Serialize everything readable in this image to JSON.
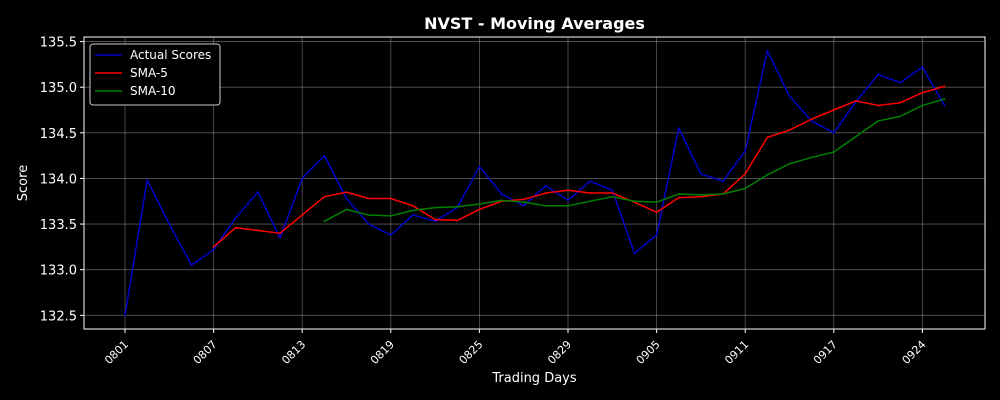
{
  "chart_data": {
    "type": "line",
    "title": "NVST - Moving Averages",
    "xlabel": "Trading Days",
    "ylabel": "Score",
    "ylim": [
      132.35,
      135.55
    ],
    "yticks": [
      "132.5",
      "133.0",
      "133.5",
      "134.0",
      "134.5",
      "135.0",
      "135.5"
    ],
    "xtick_labels": [
      "0801",
      "0807",
      "0813",
      "0819",
      "0825",
      "0829",
      "0905",
      "0911",
      "0917",
      "0924"
    ],
    "xtick_index": [
      0,
      4,
      8,
      12,
      16,
      20,
      24,
      28,
      32,
      36
    ],
    "grid": true,
    "legend_position": "top-left",
    "background": "#000000",
    "series": [
      {
        "name": "Actual Scores",
        "color": "#0000cc",
        "start_index": 0,
        "values": [
          132.5,
          133.98,
          133.5,
          133.05,
          133.22,
          133.57,
          133.85,
          133.35,
          134.0,
          134.25,
          133.78,
          133.5,
          133.38,
          133.6,
          133.53,
          133.68,
          134.13,
          133.83,
          133.7,
          133.92,
          133.76,
          133.97,
          133.87,
          133.18,
          133.38,
          134.55,
          134.05,
          133.97,
          134.3,
          135.4,
          134.9,
          134.63,
          134.5,
          134.84,
          135.14,
          135.05,
          135.22,
          134.8
        ]
      },
      {
        "name": "SMA-5",
        "color": "#ff0000",
        "start_index": 4,
        "values": [
          133.25,
          133.46,
          133.43,
          133.4,
          133.6,
          133.8,
          133.85,
          133.78,
          133.78,
          133.7,
          133.55,
          133.54,
          133.66,
          133.75,
          133.77,
          133.84,
          133.87,
          133.84,
          133.84,
          133.74,
          133.63,
          133.79,
          133.8,
          133.83,
          134.05,
          134.45,
          134.53,
          134.65,
          134.75,
          134.85,
          134.8,
          134.83,
          134.94,
          135.01
        ]
      },
      {
        "name": "SMA-10",
        "color": "#008000",
        "start_index": 9,
        "values": [
          133.53,
          133.66,
          133.6,
          133.59,
          133.65,
          133.68,
          133.69,
          133.72,
          133.76,
          133.74,
          133.7,
          133.7,
          133.75,
          133.8,
          133.75,
          133.74,
          133.83,
          133.82,
          133.83,
          133.89,
          134.04,
          134.16,
          134.23,
          134.29,
          134.46,
          134.63,
          134.68,
          134.8,
          134.87
        ]
      }
    ]
  }
}
